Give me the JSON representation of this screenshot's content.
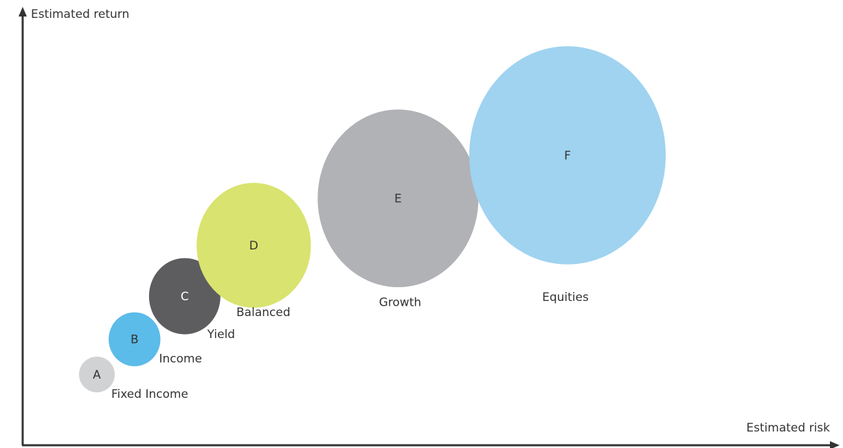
{
  "chart_data": {
    "type": "scatter",
    "title": "",
    "xlabel": "Estimated risk",
    "ylabel": "Estimated return",
    "axes_arrows": true,
    "grid": false,
    "legend": "none",
    "bubbles": [
      {
        "letter": "A",
        "name": "Fixed Income",
        "risk": 1.0,
        "return": 1.0,
        "size": 1.0,
        "color": "#d1d2d4",
        "letter_color": "#333333"
      },
      {
        "letter": "B",
        "name": "Income",
        "risk": 1.6,
        "return": 1.9,
        "size": 1.45,
        "color": "#5bbbe9",
        "letter_color": "#333333"
      },
      {
        "letter": "C",
        "name": "Yield",
        "risk": 2.4,
        "return": 3.0,
        "size": 2.0,
        "color": "#5d5d5f",
        "letter_color": "#ffffff"
      },
      {
        "letter": "D",
        "name": "Balanced",
        "risk": 3.5,
        "return": 4.3,
        "size": 3.2,
        "color": "#d9e36f",
        "letter_color": "#333333"
      },
      {
        "letter": "E",
        "name": "Growth",
        "risk": 5.8,
        "return": 5.5,
        "size": 4.5,
        "color": "#b1b2b5",
        "letter_color": "#333333"
      },
      {
        "letter": "F",
        "name": "Equities",
        "risk": 8.5,
        "return": 6.6,
        "size": 5.5,
        "color": "#9fd3f0",
        "letter_color": "#333333"
      }
    ]
  }
}
